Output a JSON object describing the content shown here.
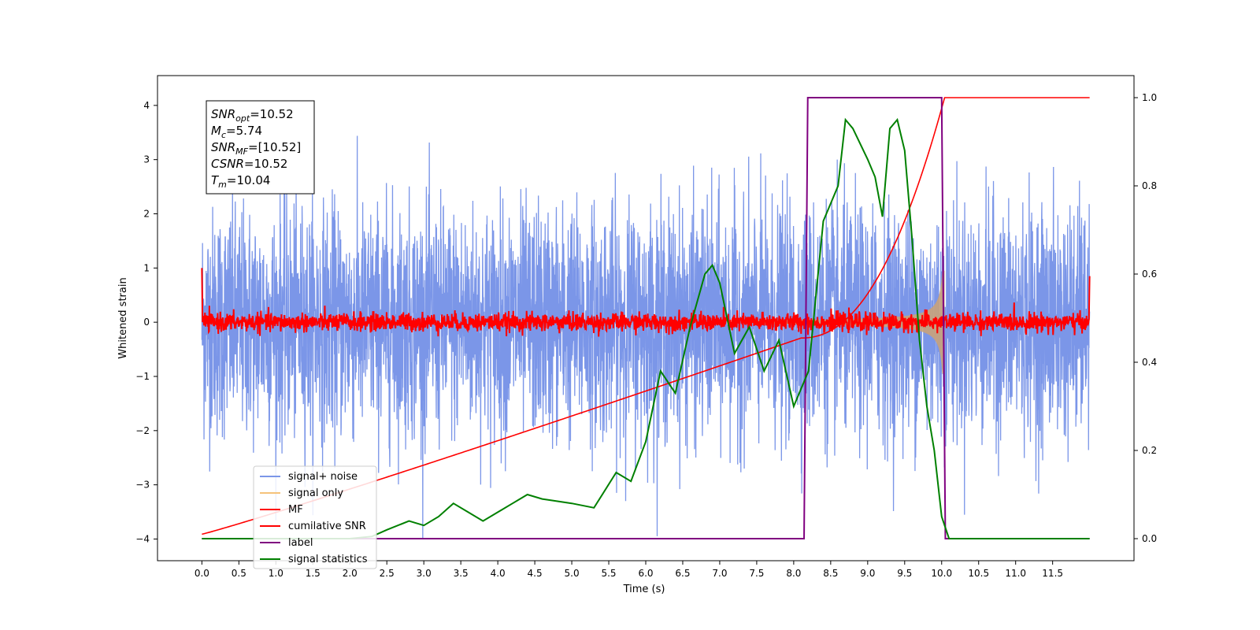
{
  "chart_data": {
    "type": "line",
    "title": "",
    "xlabel": "Time (s)",
    "ylabel": "Whitened strain",
    "xlim": [
      -0.6,
      12.6
    ],
    "ylim": [
      -4.4,
      4.55
    ],
    "y2lim": [
      -0.05,
      1.05
    ],
    "xticks": [
      "0.0",
      "0.5",
      "1.0",
      "1.5",
      "2.0",
      "2.5",
      "3.0",
      "3.5",
      "4.0",
      "4.5",
      "5.0",
      "5.5",
      "6.0",
      "6.5",
      "7.0",
      "7.5",
      "8.0",
      "8.5",
      "9.0",
      "9.5",
      "10.0",
      "10.5",
      "11.0",
      "11.5"
    ],
    "yticks": [
      "−4",
      "−3",
      "−2",
      "−1",
      "0",
      "1",
      "2",
      "3",
      "4"
    ],
    "y2ticks": [
      "0.0",
      "0.2",
      "0.4",
      "0.6",
      "0.8",
      "1.0"
    ],
    "grid": false,
    "legend_position": "lower-left",
    "annotation": {
      "lines": [
        {
          "sym": "SNR",
          "sub": "opt",
          "val": "=10.52"
        },
        {
          "sym": "M",
          "sub": "c",
          "val": "=5.74"
        },
        {
          "sym": "SNR",
          "sub": "MF",
          "val": "=[10.52]"
        },
        {
          "sym": "CSNR",
          "sub": "",
          "val": "=10.52"
        },
        {
          "sym": "T",
          "sub": "m",
          "val": "=10.04"
        }
      ]
    },
    "series": [
      {
        "name": "signal+ noise",
        "color": "#7b96e8",
        "axis": "left",
        "description": "white noise, std ~1, amplitude envelope roughly ±3.5"
      },
      {
        "name": "signal only",
        "color": "#f5c27a",
        "axis": "left",
        "chirp_peak_time": 10.04,
        "fill_color": "#c9a27a"
      },
      {
        "name": "MF",
        "color": "#ff0000",
        "axis": "left",
        "description": "noisy trace near 0, amplitude ~0.25"
      },
      {
        "name": "cumilative SNR",
        "color": "#ff0000",
        "axis": "right",
        "x": [
          0.0,
          0.5,
          1.0,
          2.0,
          3.0,
          4.0,
          5.0,
          6.0,
          7.0,
          8.0,
          8.5,
          9.0,
          9.5,
          9.8,
          10.0,
          10.04,
          12.0
        ],
        "y": [
          0.01,
          0.04,
          0.07,
          0.11,
          0.15,
          0.19,
          0.24,
          0.3,
          0.37,
          0.46,
          0.51,
          0.58,
          0.68,
          0.79,
          0.91,
          1.0,
          1.0
        ]
      },
      {
        "name": "label",
        "color": "#800080",
        "axis": "right",
        "x": [
          0.0,
          8.14,
          8.19,
          10.0,
          10.05,
          12.0
        ],
        "y": [
          0.0,
          0.0,
          1.0,
          1.0,
          0.0,
          0.0
        ]
      },
      {
        "name": "signal statistics",
        "color": "#008000",
        "axis": "right",
        "x": [
          0.0,
          1.0,
          2.0,
          2.3,
          2.5,
          2.8,
          3.0,
          3.2,
          3.4,
          3.6,
          3.8,
          4.0,
          4.2,
          4.4,
          4.6,
          5.0,
          5.3,
          5.6,
          5.8,
          6.0,
          6.2,
          6.4,
          6.6,
          6.8,
          6.9,
          7.0,
          7.2,
          7.4,
          7.6,
          7.8,
          8.0,
          8.2,
          8.4,
          8.6,
          8.7,
          8.8,
          9.0,
          9.1,
          9.2,
          9.3,
          9.4,
          9.5,
          9.6,
          9.7,
          9.8,
          9.9,
          10.0,
          10.1,
          12.0
        ],
        "y": [
          0.0,
          0.0,
          0.0,
          0.005,
          0.02,
          0.04,
          0.03,
          0.05,
          0.08,
          0.06,
          0.04,
          0.06,
          0.08,
          0.1,
          0.09,
          0.08,
          0.07,
          0.15,
          0.13,
          0.22,
          0.38,
          0.33,
          0.48,
          0.6,
          0.62,
          0.58,
          0.42,
          0.48,
          0.38,
          0.45,
          0.3,
          0.38,
          0.72,
          0.8,
          0.95,
          0.93,
          0.86,
          0.82,
          0.73,
          0.93,
          0.95,
          0.88,
          0.68,
          0.45,
          0.3,
          0.2,
          0.05,
          0.0,
          0.0
        ]
      }
    ]
  }
}
